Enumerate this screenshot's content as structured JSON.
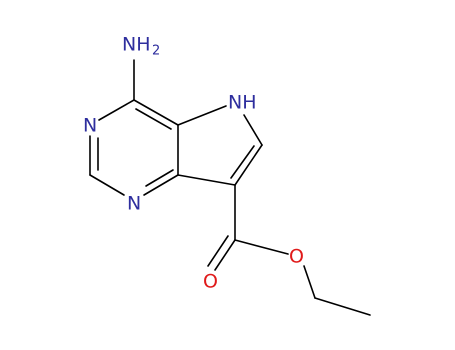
{
  "atoms": {
    "amine": {
      "label": "NH",
      "subscript": "2"
    },
    "n3": "N",
    "n1": "N",
    "n5": "NH",
    "carbonyl_o": "O",
    "ester_o": "O"
  }
}
